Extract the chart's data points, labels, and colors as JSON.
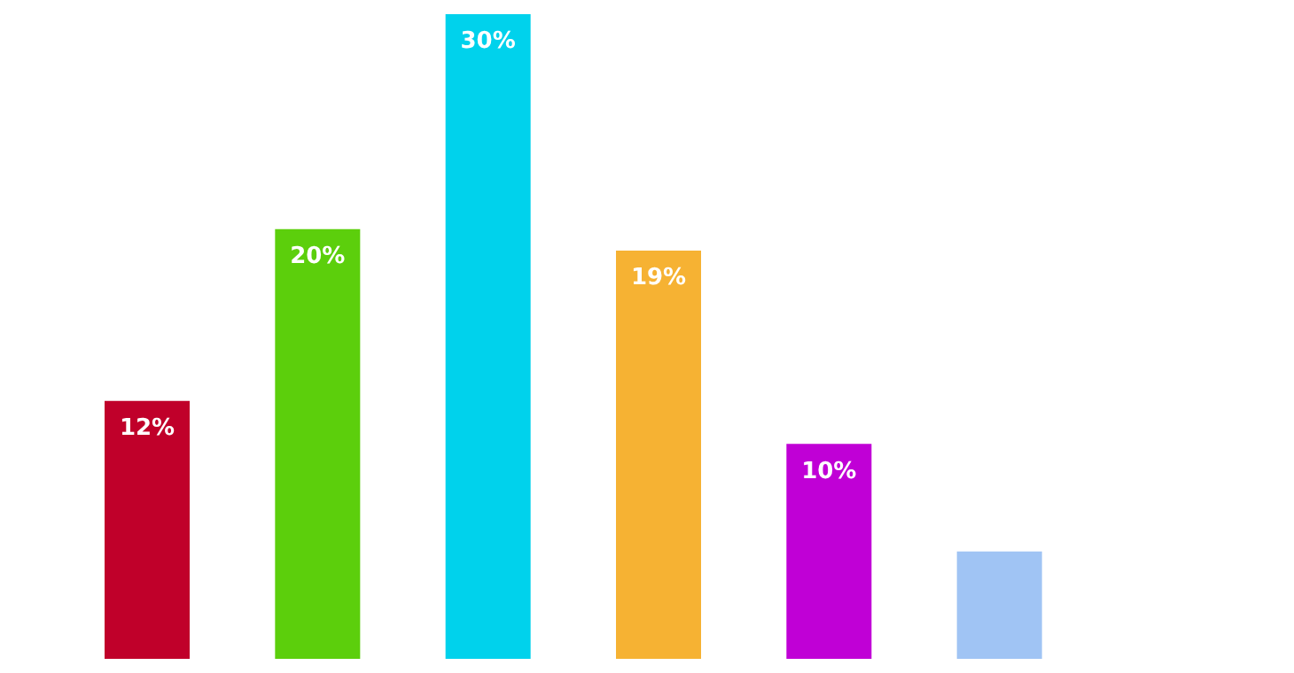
{
  "chart_data": {
    "type": "bar",
    "categories": [
      null,
      null,
      null,
      null,
      null,
      null
    ],
    "values": [
      12,
      20,
      30,
      19,
      10,
      5
    ],
    "colors": [
      "#c0002a",
      "#5ccf0c",
      "#00d2ec",
      "#f6b233",
      "#c000d6",
      "#a0c4f4"
    ],
    "value_labels": [
      "12%",
      "20%",
      "30%",
      "19%",
      "10%",
      null
    ]
  }
}
